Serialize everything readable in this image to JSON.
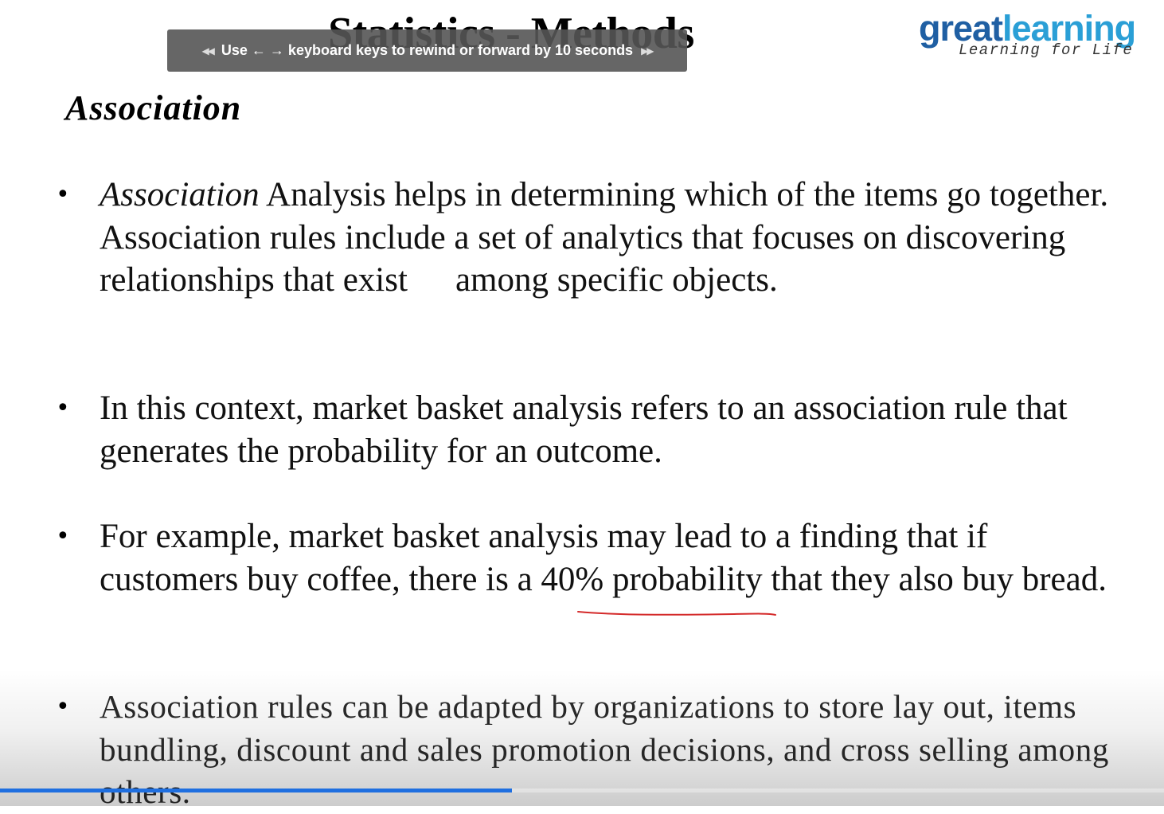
{
  "slide": {
    "title": "Statistics - Methods",
    "logo": {
      "word_part1": "great",
      "word_part2": "learning",
      "tagline": "Learning for Life"
    },
    "section_heading": "Association",
    "bullets": [
      {
        "italic_lead": "Association",
        "text_line1_rest": " Analysis helps in determining which of the items go together. Association rules include a set of analytics that focuses on discovering relationships that exist",
        "text_tail": "among specific objects."
      },
      {
        "text": "In this context, market basket analysis refers to an association rule that generates the probability for an outcome."
      },
      {
        "text": "For example, market basket analysis may lead to a finding that if customers buy coffee, there is a 40% probability that they also buy bread."
      },
      {
        "text": "Association rules can be adapted by organizations to store lay out, items bundling, discount and sales promotion decisions, and cross selling among others."
      }
    ],
    "annotation": {
      "underlined_phrase": "40% probability",
      "color": "#d42a2a"
    }
  },
  "player": {
    "hint_text": "Use ← → keyboard keys to rewind or forward by 10 seconds",
    "hint_icon_left": "rewind-icon",
    "hint_icon_right": "forward-icon",
    "progress_fraction": 0.44,
    "progress_color": "#1f6fe0"
  }
}
